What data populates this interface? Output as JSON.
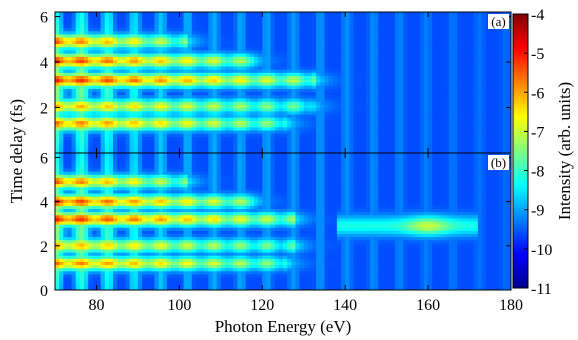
{
  "chart_data": {
    "type": "heatmap",
    "xlabel": "Photon Energy (eV)",
    "ylabel": "Time delay (fs)",
    "colorbar": {
      "label": "Intensity (arb. units)",
      "range": [
        -11,
        -4
      ],
      "ticks": [
        "-4",
        "-5",
        "-6",
        "-7",
        "-8",
        "-9",
        "-10",
        "-11"
      ],
      "colormap": [
        "#00008f",
        "#0000ff",
        "#0080ff",
        "#00ffff",
        "#80ff80",
        "#ffff00",
        "#ff8000",
        "#ff0000",
        "#800000"
      ]
    },
    "x_ticks": [
      "80",
      "100",
      "120",
      "140",
      "160",
      "180"
    ],
    "x_tick_values": [
      80,
      100,
      120,
      140,
      160,
      180
    ],
    "xlim": [
      70,
      180
    ],
    "ylim": [
      0,
      6.2
    ],
    "panels": [
      {
        "label": "(a)",
        "y_ticks": [
          "2",
          "4",
          "6"
        ],
        "y_tick_values": [
          2,
          4,
          6
        ],
        "bands": [
          {
            "delay": 1.3,
            "intensity_at_70eV": -6.0,
            "cutoff_eV": 126
          },
          {
            "delay": 2.05,
            "intensity_at_70eV": -6.4,
            "cutoff_eV": 132
          },
          {
            "delay": 3.2,
            "intensity_at_70eV": -5.4,
            "cutoff_eV": 133
          },
          {
            "delay": 4.05,
            "intensity_at_70eV": -5.5,
            "cutoff_eV": 118
          },
          {
            "delay": 4.9,
            "intensity_at_70eV": -5.8,
            "cutoff_eV": 102
          }
        ],
        "background_intensity": -9.6
      },
      {
        "label": "(b)",
        "y_ticks": [
          "0",
          "2",
          "4",
          "6"
        ],
        "y_tick_values": [
          0,
          2,
          4,
          6
        ],
        "bands": [
          {
            "delay": 1.2,
            "intensity_at_70eV": -6.0,
            "cutoff_eV": 126
          },
          {
            "delay": 2.0,
            "intensity_at_70eV": -6.4,
            "cutoff_eV": 128
          },
          {
            "delay": 3.2,
            "intensity_at_70eV": -5.4,
            "cutoff_eV": 128
          },
          {
            "delay": 4.0,
            "intensity_at_70eV": -5.5,
            "cutoff_eV": 118
          },
          {
            "delay": 4.9,
            "intensity_at_70eV": -5.8,
            "cutoff_eV": 102
          }
        ],
        "extra_feature": {
          "energy_range": [
            138,
            172
          ],
          "delay": 2.9,
          "peak_eV": 160,
          "peak_intensity": -7.0
        },
        "background_intensity": -9.6
      }
    ]
  }
}
